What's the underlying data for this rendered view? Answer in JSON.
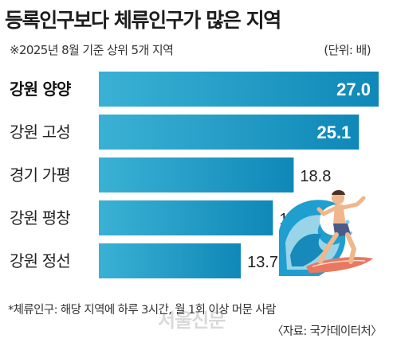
{
  "header": {
    "title": "등록인구보다 체류인구가 많은 지역",
    "subtitle": "※2025년 8월 기준 상위 5개 지역",
    "unit": "(단위: 배)"
  },
  "chart_data": {
    "type": "bar",
    "orientation": "horizontal",
    "categories": [
      "강원 양양",
      "강원 고성",
      "경기 가평",
      "강원 평창",
      "강원 정선"
    ],
    "values": [
      27.0,
      25.1,
      18.8,
      16.8,
      13.7
    ],
    "value_labels": [
      "27.0",
      "25.1",
      "18.8",
      "16.8",
      "13.7"
    ],
    "title": "등록인구보다 체류인구가 많은 지역",
    "xlabel": "",
    "ylabel": "",
    "grid": false,
    "colors": {
      "bar_gradient_start": "#3ab1d4",
      "bar_gradient_end": "#0f88b8"
    }
  },
  "illustration": {
    "name": "surfer-on-wave"
  },
  "footer": {
    "footnote": "*체류인구: 해당 지역에 하루 3시간, 월 1회 이상 머문 사람",
    "source": "〈자료: 국가데이터처〉",
    "watermark": "서울신문"
  }
}
